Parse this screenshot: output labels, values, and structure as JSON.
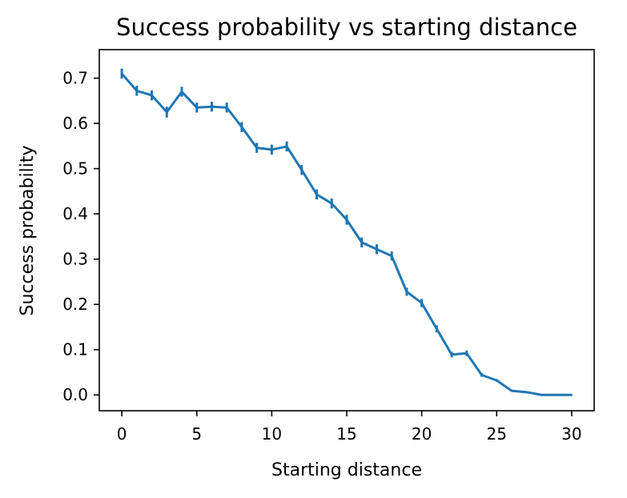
{
  "chart_data": {
    "type": "line",
    "title": "Success probability vs starting distance",
    "xlabel": "Starting distance",
    "ylabel": "Success probability",
    "xlim": [
      -1.5,
      31.5
    ],
    "ylim": [
      -0.035,
      0.763
    ],
    "xticks": [
      0,
      5,
      10,
      15,
      20,
      25,
      30
    ],
    "yticks": [
      0.0,
      0.1,
      0.2,
      0.3,
      0.4,
      0.5,
      0.6,
      0.7
    ],
    "ytick_labels": [
      "0.0",
      "0.1",
      "0.2",
      "0.3",
      "0.4",
      "0.5",
      "0.6",
      "0.7"
    ],
    "grid": false,
    "color": "#1f77b4",
    "series": [
      {
        "x": [
          0,
          1,
          2,
          3,
          4,
          5,
          6,
          7,
          8,
          9,
          10,
          11,
          12,
          13,
          14,
          15,
          16,
          17,
          18,
          19,
          20,
          21,
          22,
          23,
          24,
          25,
          26,
          27,
          28,
          29,
          30
        ],
        "values": [
          0.71,
          0.672,
          0.662,
          0.625,
          0.67,
          0.635,
          0.637,
          0.635,
          0.592,
          0.546,
          0.542,
          0.549,
          0.497,
          0.443,
          0.423,
          0.387,
          0.337,
          0.322,
          0.307,
          0.228,
          0.203,
          0.146,
          0.089,
          0.092,
          0.044,
          0.032,
          0.009,
          0.006,
          0.0,
          0.0,
          0.0
        ],
        "errors": [
          0.011,
          0.011,
          0.011,
          0.012,
          0.011,
          0.011,
          0.011,
          0.011,
          0.011,
          0.011,
          0.011,
          0.011,
          0.011,
          0.011,
          0.011,
          0.011,
          0.011,
          0.011,
          0.01,
          0.009,
          0.009,
          0.008,
          0.006,
          0.006,
          0.004,
          0.003,
          0.002,
          0.001,
          0.0,
          0.0,
          0.0
        ]
      }
    ]
  }
}
